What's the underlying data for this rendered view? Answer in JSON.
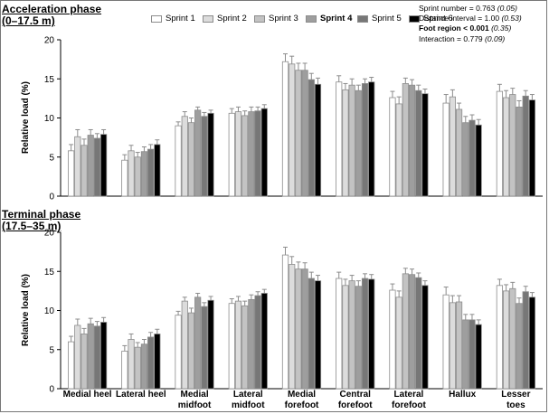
{
  "chart_data": [
    {
      "type": "bar",
      "title": "Acceleration phase",
      "subtitle": "(0–17.5 m)",
      "ylabel": "Relative load (%)",
      "ylim": [
        0,
        20
      ],
      "yticks": [
        "0",
        "5",
        "10",
        "15",
        "20"
      ],
      "categories": [
        "Medial heel",
        "Lateral heel",
        "Medial midfoot",
        "Lateral midfoot",
        "Medial forefoot",
        "Central forefoot",
        "Lateral forefoot",
        "Hallux",
        "Lesser toes"
      ],
      "series": [
        {
          "name": "Sprint 1",
          "values": [
            5.8,
            4.6,
            9.0,
            10.6,
            17.2,
            14.6,
            12.6,
            11.9,
            13.4
          ],
          "errors": [
            0.8,
            0.7,
            0.5,
            0.6,
            1.0,
            0.8,
            0.8,
            1.1,
            0.9
          ]
        },
        {
          "name": "Sprint 2",
          "values": [
            7.6,
            5.8,
            10.2,
            10.8,
            16.9,
            13.6,
            11.8,
            12.7,
            12.6
          ],
          "errors": [
            0.9,
            0.7,
            0.6,
            0.6,
            1.0,
            0.8,
            0.9,
            0.9,
            0.9
          ]
        },
        {
          "name": "Sprint 3",
          "values": [
            6.5,
            5.0,
            9.4,
            10.3,
            16.1,
            14.2,
            14.4,
            11.1,
            13.0
          ],
          "errors": [
            0.8,
            0.6,
            0.6,
            0.6,
            0.9,
            0.8,
            0.7,
            0.8,
            0.8
          ]
        },
        {
          "name": "Sprint 4",
          "values": [
            7.8,
            5.7,
            11.0,
            10.8,
            16.1,
            13.5,
            14.2,
            9.4,
            11.4
          ],
          "errors": [
            0.7,
            0.6,
            0.4,
            0.6,
            0.9,
            0.7,
            0.7,
            0.8,
            0.8
          ]
        },
        {
          "name": "Sprint 5",
          "values": [
            7.4,
            6.0,
            10.2,
            10.9,
            14.9,
            14.4,
            13.5,
            9.7,
            12.8
          ],
          "errors": [
            0.6,
            0.6,
            0.5,
            0.5,
            0.8,
            0.6,
            0.7,
            0.7,
            0.7
          ]
        },
        {
          "name": "Sprint 6",
          "values": [
            7.9,
            6.6,
            10.6,
            11.2,
            14.3,
            14.6,
            13.1,
            9.1,
            12.3
          ],
          "errors": [
            0.6,
            0.6,
            0.4,
            0.5,
            0.8,
            0.6,
            0.6,
            0.7,
            0.7
          ]
        }
      ],
      "stats": [
        {
          "label": "Sprint number = ",
          "value": "0.763",
          "note": "(0.05)",
          "bold": false
        },
        {
          "label": "Distance interval = ",
          "value": "1.00",
          "note": "(0.53)",
          "bold": false
        },
        {
          "label": "Foot region < ",
          "value": "0.001",
          "note": "(0.35)",
          "bold": true
        },
        {
          "label": "Interaction = ",
          "value": "0.779",
          "note": "(0.09)",
          "bold": false
        }
      ]
    },
    {
      "type": "bar",
      "title": "Terminal phase",
      "subtitle": "(17.5–35 m)",
      "ylabel": "Relative load (%)",
      "ylim": [
        0,
        20
      ],
      "yticks": [
        "0",
        "5",
        "10",
        "15",
        "20"
      ],
      "categories": [
        "Medial heel",
        "Lateral heel",
        "Medial midfoot",
        "Lateral midfoot",
        "Medial forefoot",
        "Central forefoot",
        "Lateral forefoot",
        "Hallux",
        "Lesser toes"
      ],
      "series": [
        {
          "name": "Sprint 1",
          "values": [
            6.0,
            4.8,
            9.4,
            10.9,
            17.1,
            14.1,
            12.6,
            12.0,
            13.2
          ],
          "errors": [
            0.7,
            0.7,
            0.5,
            0.6,
            1.0,
            0.8,
            0.8,
            1.0,
            0.8
          ]
        },
        {
          "name": "Sprint 2",
          "values": [
            8.1,
            6.3,
            11.2,
            11.2,
            15.9,
            13.2,
            11.7,
            11.0,
            12.5
          ],
          "errors": [
            0.8,
            0.7,
            0.5,
            0.6,
            1.0,
            0.8,
            0.8,
            0.9,
            0.8
          ]
        },
        {
          "name": "Sprint 3",
          "values": [
            7.0,
            5.3,
            9.7,
            10.6,
            15.3,
            13.8,
            14.7,
            11.1,
            12.8
          ],
          "errors": [
            0.7,
            0.6,
            0.6,
            0.6,
            0.9,
            0.7,
            0.7,
            0.8,
            0.8
          ]
        },
        {
          "name": "Sprint 4",
          "values": [
            8.3,
            5.7,
            11.7,
            11.4,
            15.3,
            13.1,
            14.6,
            8.8,
            10.9
          ],
          "errors": [
            0.7,
            0.6,
            0.5,
            0.6,
            0.8,
            0.7,
            0.7,
            0.7,
            0.7
          ]
        },
        {
          "name": "Sprint 5",
          "values": [
            8.0,
            6.6,
            10.5,
            11.9,
            14.1,
            14.1,
            14.2,
            8.8,
            12.4
          ],
          "errors": [
            0.6,
            0.6,
            0.5,
            0.5,
            0.8,
            0.6,
            0.6,
            0.7,
            0.7
          ]
        },
        {
          "name": "Sprint 6",
          "values": [
            8.5,
            7.0,
            11.3,
            12.2,
            13.8,
            14.0,
            13.2,
            8.2,
            11.7
          ],
          "errors": [
            0.6,
            0.6,
            0.5,
            0.5,
            0.7,
            0.6,
            0.6,
            0.6,
            0.6
          ]
        }
      ]
    }
  ],
  "legend": {
    "items": [
      {
        "label": "Sprint 1",
        "color": "#ffffff",
        "bold": false
      },
      {
        "label": "Sprint 2",
        "color": "#dcdcdc",
        "bold": false
      },
      {
        "label": "Sprint 3",
        "color": "#c3c3c3",
        "bold": false
      },
      {
        "label": "Sprint 4",
        "color": "#9e9e9e",
        "bold": true
      },
      {
        "label": "Sprint 5",
        "color": "#777777",
        "bold": false
      },
      {
        "label": "Sprint 6",
        "color": "#000000",
        "bold": false
      }
    ]
  },
  "colors": {
    "axis": "#000000",
    "bar_outline": "#8c8c8c",
    "error_bar": "#8c8c8c"
  }
}
